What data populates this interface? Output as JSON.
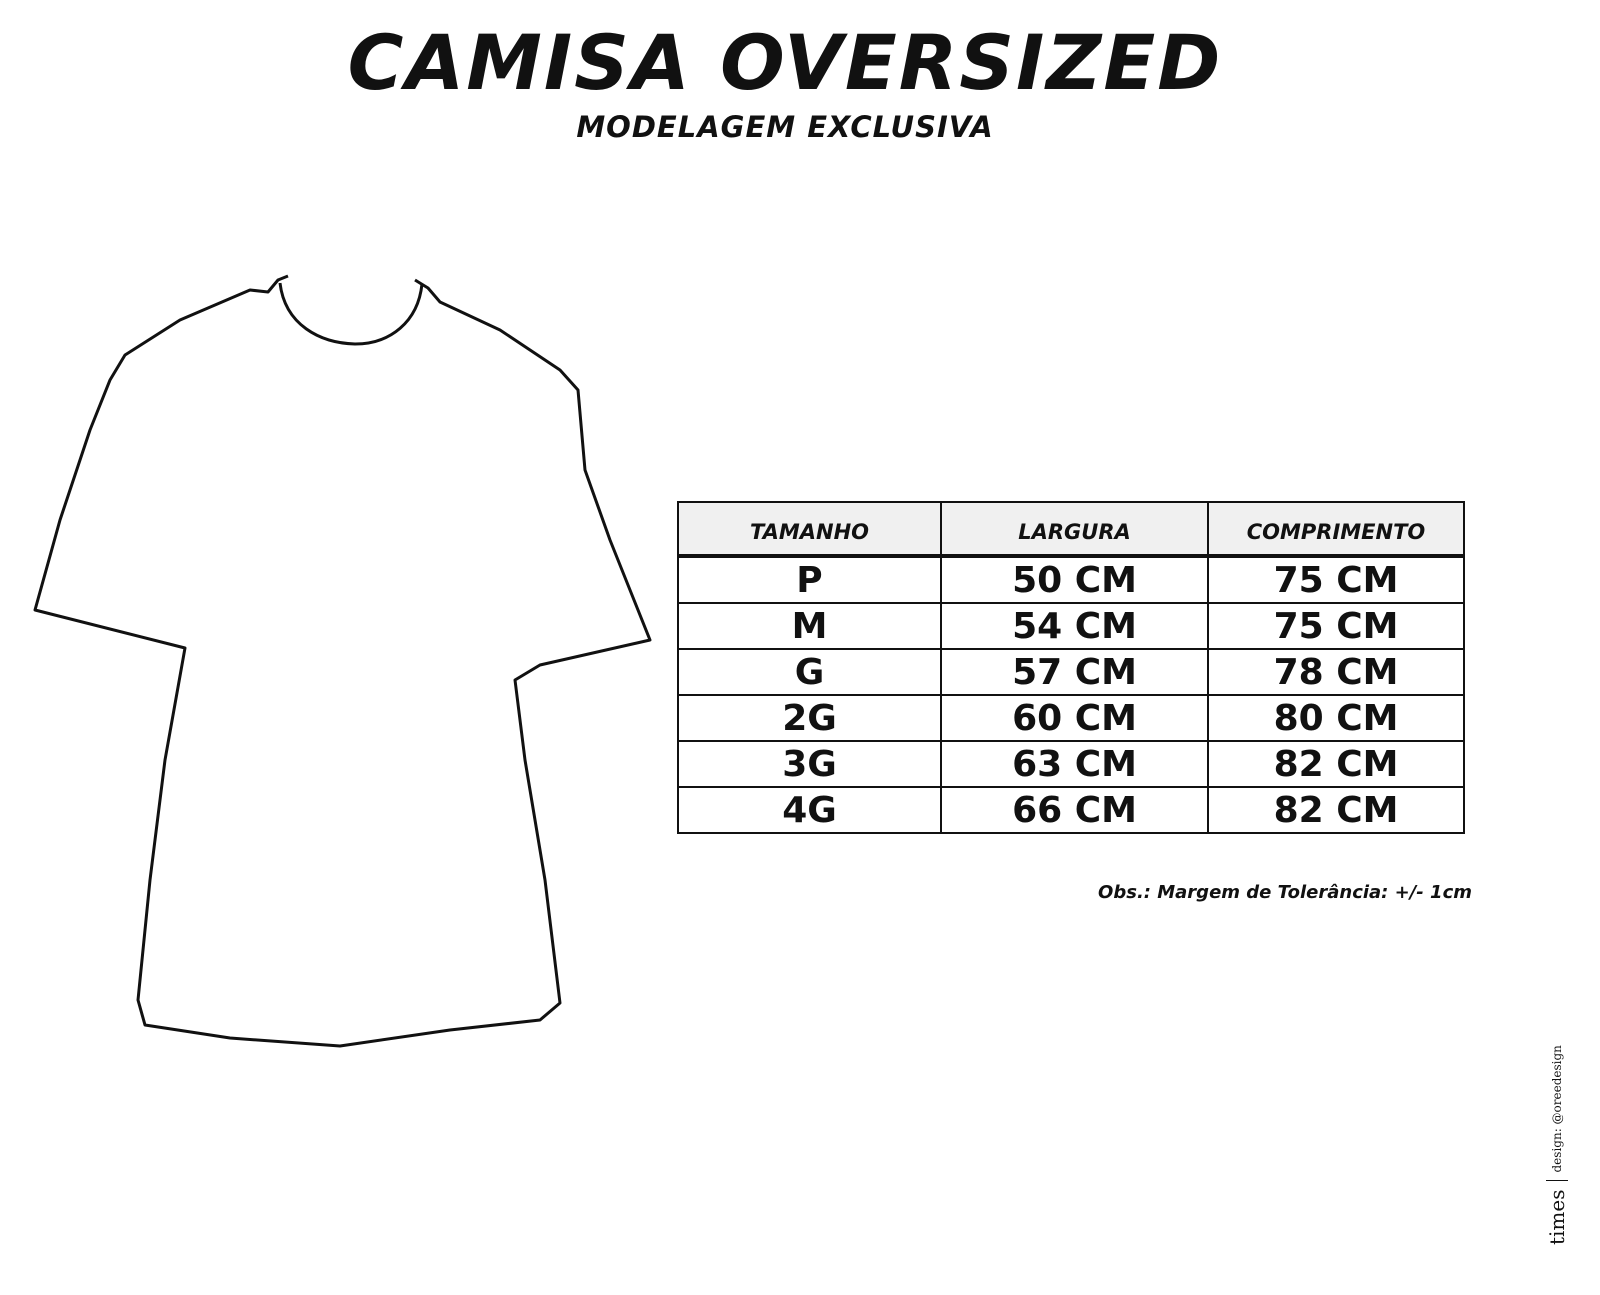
{
  "header": {
    "title": "CAMISA OVERSIZED",
    "subtitle": "MODELAGEM EXCLUSIVA"
  },
  "table": {
    "headers": [
      "TAMANHO",
      "LARGURA",
      "COMPRIMENTO"
    ],
    "rows": [
      [
        "P",
        "50 CM",
        "75 CM"
      ],
      [
        "M",
        "54 CM",
        "75 CM"
      ],
      [
        "G",
        "57 CM",
        "78 CM"
      ],
      [
        "2G",
        "60 CM",
        "80 CM"
      ],
      [
        "3G",
        "63 CM",
        "82 CM"
      ],
      [
        "4G",
        "66 CM",
        "82 CM"
      ]
    ]
  },
  "note": "Obs.: Margem de Tolerância: +/- 1cm",
  "credit": {
    "brand": "times",
    "design": "design: @oreedesign"
  }
}
